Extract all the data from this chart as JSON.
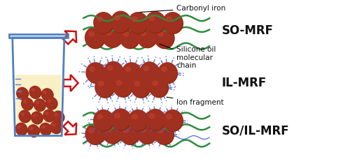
{
  "bg_color": "#ffffff",
  "labels": {
    "so_mrf": "SO-MRF",
    "il_mrf": "IL-MRF",
    "so_il_mrf": "SO/IL-MRF",
    "carbonyl_iron": "Carbonyl iron",
    "silicone_oil": "Silicone oil\nmolecular\nchain",
    "ion_fragment": "Ion fragment"
  },
  "colors": {
    "sphere_base": "#8B2800",
    "sphere_mid": "#A03020",
    "sphere_lite": "#C04030",
    "chain_green": "#2E8B40",
    "chain_blue": "#4060CC",
    "arrow_red_fill": "#ffffff",
    "arrow_red_edge": "#CC1010",
    "beaker_outline": "#5080C0",
    "beaker_liquid": "#FAF0C8",
    "label_color": "#111111",
    "annot_color": "#111111"
  },
  "figsize": [
    5.0,
    2.38
  ],
  "dpi": 100,
  "xlim": [
    0,
    10
  ],
  "ylim": [
    0,
    4.76
  ]
}
